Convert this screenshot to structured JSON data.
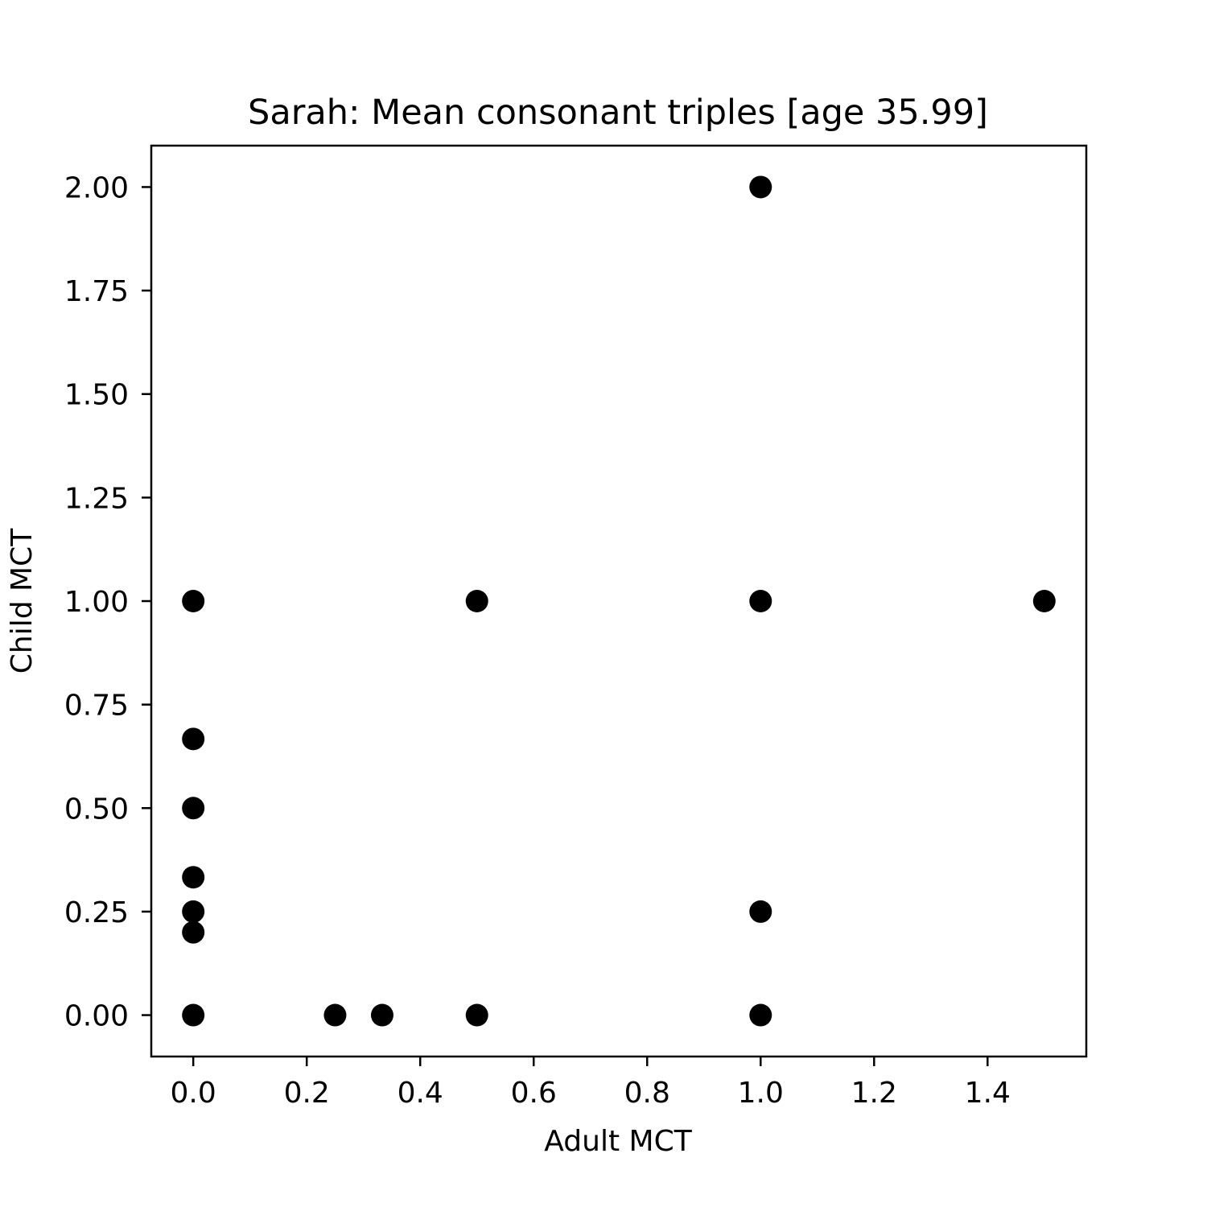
{
  "chart_data": {
    "type": "scatter",
    "title": "Sarah: Mean consonant triples [age 35.99]",
    "xlabel": "Adult MCT",
    "ylabel": "Child MCT",
    "xlim": [
      -0.074,
      1.574
    ],
    "ylim": [
      -0.1,
      2.1
    ],
    "xticks": [
      0.0,
      0.2,
      0.4,
      0.6,
      0.8,
      1.0,
      1.2,
      1.4
    ],
    "xtick_labels": [
      "0.0",
      "0.2",
      "0.4",
      "0.6",
      "0.8",
      "1.0",
      "1.2",
      "1.4"
    ],
    "yticks": [
      0.0,
      0.25,
      0.5,
      0.75,
      1.0,
      1.25,
      1.5,
      1.75,
      2.0
    ],
    "ytick_labels": [
      "0.00",
      "0.25",
      "0.50",
      "0.75",
      "1.00",
      "1.25",
      "1.50",
      "1.75",
      "2.00"
    ],
    "grid": false,
    "marker_color": "#000000",
    "points": [
      {
        "x": 1.0,
        "y": 2.0
      },
      {
        "x": 0.0,
        "y": 1.0
      },
      {
        "x": 0.5,
        "y": 1.0
      },
      {
        "x": 1.0,
        "y": 1.0
      },
      {
        "x": 1.5,
        "y": 1.0
      },
      {
        "x": 0.0,
        "y": 0.667
      },
      {
        "x": 0.0,
        "y": 0.5
      },
      {
        "x": 0.0,
        "y": 0.333
      },
      {
        "x": 0.0,
        "y": 0.25
      },
      {
        "x": 0.0,
        "y": 0.2
      },
      {
        "x": 1.0,
        "y": 0.25
      },
      {
        "x": 0.0,
        "y": 0.0
      },
      {
        "x": 0.25,
        "y": 0.0
      },
      {
        "x": 0.333,
        "y": 0.0
      },
      {
        "x": 0.5,
        "y": 0.0
      },
      {
        "x": 1.0,
        "y": 0.0
      }
    ]
  }
}
